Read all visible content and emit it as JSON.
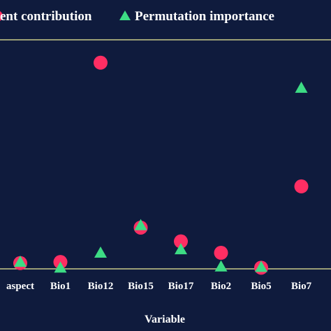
{
  "chart_data": {
    "type": "scatter",
    "title": "",
    "xlabel": "Variable",
    "ylabel": "",
    "ylim": [
      0,
      100
    ],
    "grid": false,
    "legend_position": "top",
    "categories": [
      "aspect",
      "Bio1",
      "Bio12",
      "Bio15",
      "Bio17",
      "Bio2",
      "Bio5",
      "Bio7"
    ],
    "series": [
      {
        "name": "Percent contribution",
        "legend_visible_text": "ent contribution",
        "marker": "circle",
        "color": "#ff2e63",
        "values": [
          2.5,
          3.0,
          90.0,
          18.0,
          12.0,
          7.0,
          0.5,
          36.0
        ]
      },
      {
        "name": "Permutation importance",
        "legend_visible_text": "Permutation importance",
        "marker": "triangle",
        "color": "#3ddc84",
        "values": [
          3.0,
          0.5,
          7.0,
          19.0,
          8.5,
          1.0,
          0.8,
          79.0
        ]
      }
    ]
  },
  "colors": {
    "background": "#0f1b3d",
    "frame_line": "#c9c98a",
    "text": "#ffffff"
  }
}
